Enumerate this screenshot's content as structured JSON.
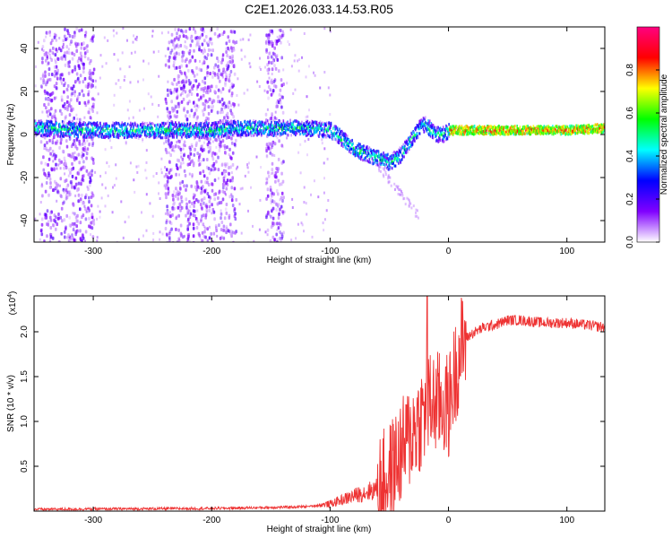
{
  "title": "C2E1.2026.033.14.53.R05",
  "chart_data": [
    {
      "type": "heatmap",
      "xlabel": "Height of straight line (km)",
      "ylabel": "Frequency (Hz)",
      "xlim": [
        -350,
        132
      ],
      "ylim": [
        -50,
        50
      ],
      "x_ticks": [
        -300,
        -200,
        -100,
        0,
        100
      ],
      "y_ticks": [
        -40,
        -20,
        0,
        20,
        40
      ],
      "colorbar": {
        "label": "Normalized spectral amplitude",
        "range": [
          0.0,
          1.0
        ],
        "ticks": [
          "0.0",
          "0.2",
          "0.4",
          "0.6",
          "0.8"
        ],
        "colormap": [
          "#ffffff",
          "#8000ff",
          "#0000ff",
          "#00ffff",
          "#00ff00",
          "#ffff00",
          "#ff0000",
          "#ff0080"
        ]
      },
      "ridge": {
        "x": [
          -350,
          -300,
          -250,
          -200,
          -180,
          -150,
          -120,
          -100,
          -90,
          -80,
          -70,
          -60,
          -50,
          -40,
          -35,
          -30,
          -25,
          -20,
          -15,
          -10,
          -5,
          0,
          20,
          50,
          80,
          100,
          132
        ],
        "y": [
          3,
          2,
          2,
          2,
          3,
          3,
          3,
          2,
          -2,
          -7,
          -9,
          -11,
          -13,
          -9,
          -5,
          -1,
          3,
          5,
          2,
          0,
          0,
          2,
          2,
          2,
          2,
          2,
          3
        ]
      },
      "noise_columns_km": [
        [
          -345,
          -300
        ],
        [
          -240,
          -180
        ],
        [
          -155,
          -140
        ]
      ],
      "grid": false
    },
    {
      "type": "line",
      "xlabel": "Height of straight line (km)",
      "ylabel": "SNR (10 * v/v)",
      "y_scale_label": "(x10",
      "y_scale_exponent": "4",
      "xlim": [
        -350,
        132
      ],
      "ylim": [
        0.0,
        2.4
      ],
      "x_ticks": [
        -300,
        -200,
        -100,
        0,
        100
      ],
      "y_ticks": [
        "0.5",
        "1.0",
        "1.5",
        "2.0"
      ],
      "series_color": "#ee3333",
      "envelope": {
        "x": [
          -350,
          -200,
          -150,
          -120,
          -100,
          -80,
          -60,
          -50,
          -40,
          -30,
          -25,
          -20,
          -15,
          -10,
          -5,
          0,
          5,
          10,
          15,
          20,
          30,
          40,
          50,
          60,
          80,
          100,
          120,
          132
        ],
        "y": [
          0.02,
          0.03,
          0.04,
          0.05,
          0.08,
          0.17,
          0.25,
          0.4,
          0.65,
          0.9,
          1.0,
          1.1,
          1.2,
          1.2,
          1.2,
          1.15,
          1.5,
          1.8,
          1.93,
          1.98,
          2.05,
          2.08,
          2.13,
          2.13,
          2.1,
          2.1,
          2.07,
          2.05
        ]
      },
      "grid": false
    }
  ]
}
